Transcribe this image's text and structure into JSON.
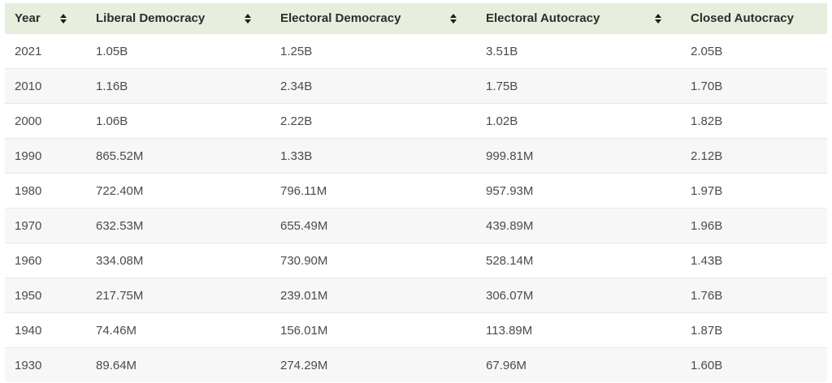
{
  "colors": {
    "header_bg": "#e7eedd",
    "header_text": "#2d2d2d",
    "row_bg": "#ffffff",
    "row_alt_bg": "#f7f7f7",
    "divider": "#e7e7e7",
    "cell_text": "#4b4b4b",
    "sort_icon": "#1c1c1c"
  },
  "table": {
    "columns": [
      {
        "label": "Year",
        "sortable": true
      },
      {
        "label": "Liberal Democracy",
        "sortable": true
      },
      {
        "label": "Electoral Democracy",
        "sortable": true
      },
      {
        "label": "Electoral Autocracy",
        "sortable": true
      },
      {
        "label": "Closed Autocracy",
        "sortable": false
      }
    ],
    "rows": [
      [
        "2021",
        "1.05B",
        "1.25B",
        "3.51B",
        "2.05B"
      ],
      [
        "2010",
        "1.16B",
        "2.34B",
        "1.75B",
        "1.70B"
      ],
      [
        "2000",
        "1.06B",
        "2.22B",
        "1.02B",
        "1.82B"
      ],
      [
        "1990",
        "865.52M",
        "1.33B",
        "999.81M",
        "2.12B"
      ],
      [
        "1980",
        "722.40M",
        "796.11M",
        "957.93M",
        "1.97B"
      ],
      [
        "1970",
        "632.53M",
        "655.49M",
        "439.89M",
        "1.96B"
      ],
      [
        "1960",
        "334.08M",
        "730.90M",
        "528.14M",
        "1.43B"
      ],
      [
        "1950",
        "217.75M",
        "239.01M",
        "306.07M",
        "1.76B"
      ],
      [
        "1940",
        "74.46M",
        "156.01M",
        "113.89M",
        "1.87B"
      ],
      [
        "1930",
        "89.64M",
        "274.29M",
        "67.96M",
        "1.60B"
      ]
    ]
  },
  "chart_data": {
    "type": "table",
    "title": "",
    "categories": [
      2021,
      2010,
      2000,
      1990,
      1980,
      1970,
      1960,
      1950,
      1940,
      1930
    ],
    "category_label": "Year",
    "unit": "people",
    "value_format": "M = million, B = billion",
    "series": [
      {
        "name": "Liberal Democracy",
        "values_millions": [
          1050,
          1160,
          1060,
          865.52,
          722.4,
          632.53,
          334.08,
          217.75,
          74.46,
          89.64
        ]
      },
      {
        "name": "Electoral Democracy",
        "values_millions": [
          1250,
          2340,
          2220,
          1330,
          796.11,
          655.49,
          730.9,
          239.01,
          156.01,
          274.29
        ]
      },
      {
        "name": "Electoral Autocracy",
        "values_millions": [
          3510,
          1750,
          1020,
          999.81,
          957.93,
          439.89,
          528.14,
          306.07,
          113.89,
          67.96
        ]
      },
      {
        "name": "Closed Autocracy",
        "values_millions": [
          2050,
          1700,
          1820,
          2120,
          1970,
          1960,
          1430,
          1760,
          1870,
          1600
        ]
      }
    ]
  }
}
